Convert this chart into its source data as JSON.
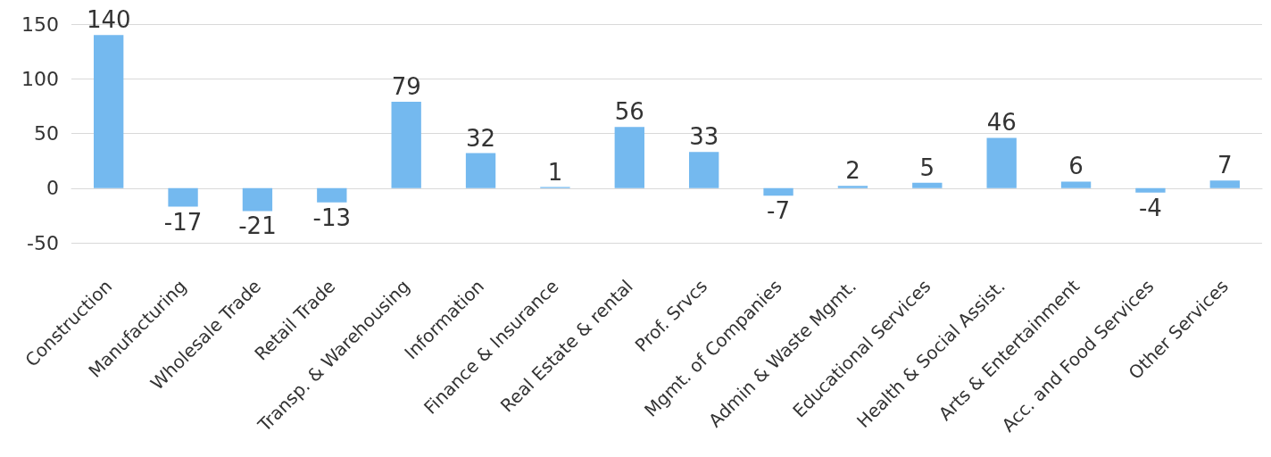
{
  "chart_data": {
    "type": "bar",
    "categories": [
      "Construction",
      "Manufacturing",
      "Wholesale Trade",
      "Retail Trade",
      "Transp. & Warehousing",
      "Information",
      "Finance & Insurance",
      "Real Estate & rental",
      "Prof. Srvcs",
      "Mgmt. of Companies",
      "Admin & Waste Mgmt.",
      "Educational Services",
      "Health & Social Assist.",
      "Arts & Entertainment",
      "Acc. and Food Services",
      "Other Services"
    ],
    "values": [
      140,
      -17,
      -21,
      -13,
      79,
      32,
      1,
      56,
      33,
      -7,
      2,
      5,
      46,
      6,
      -4,
      7
    ],
    "color": "#74b9ef",
    "ylim": [
      -50,
      150
    ],
    "yticks": [
      -50,
      0,
      50,
      100,
      150
    ],
    "grid": "y",
    "data_labels": true
  }
}
